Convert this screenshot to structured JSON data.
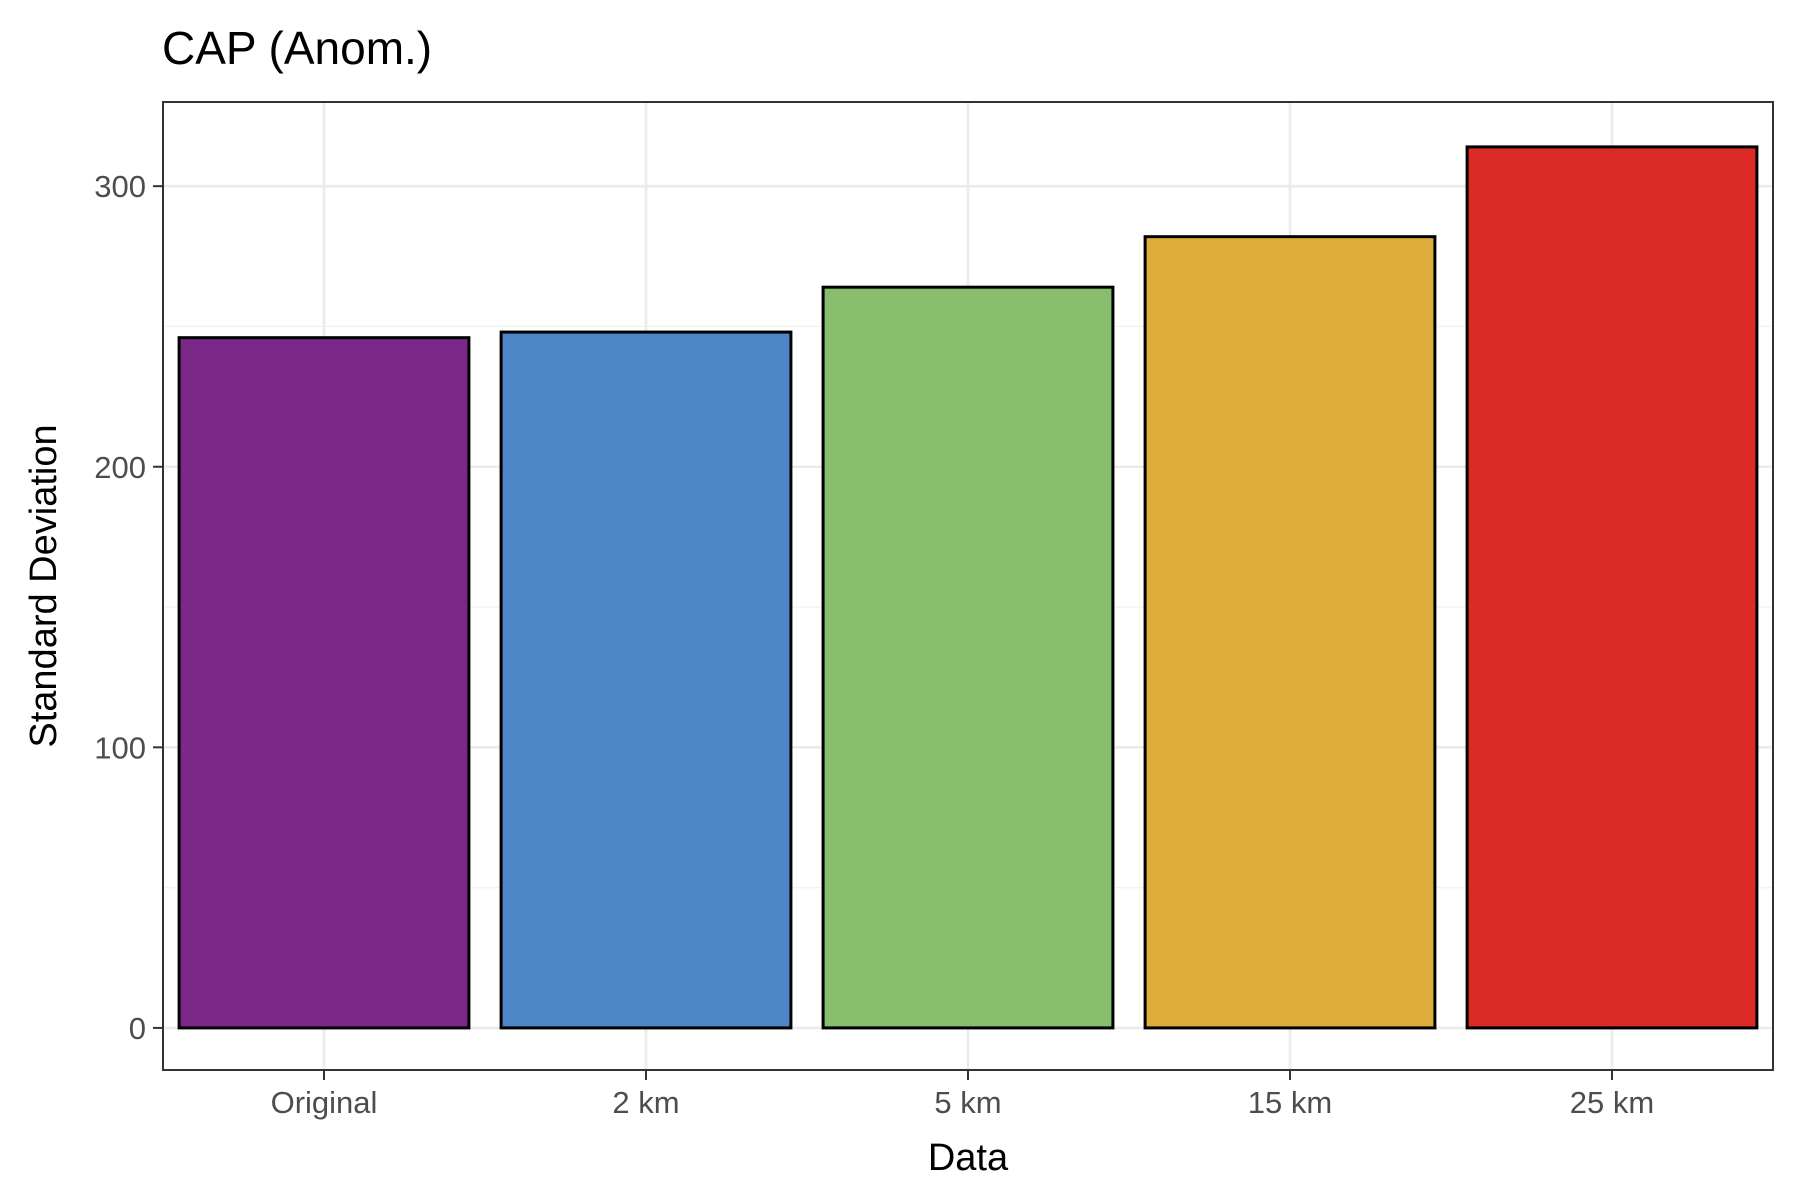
{
  "chart_data": {
    "type": "bar",
    "title": "CAP (Anom.)",
    "xlabel": "Data",
    "ylabel": "Standard Deviation",
    "categories": [
      "Original",
      "2 km",
      "5 km",
      "15 km",
      "25 km"
    ],
    "values": [
      246,
      248,
      264,
      282,
      314
    ],
    "colors": [
      "#7B2988",
      "#4D85C6",
      "#88BD6E",
      "#DDAE3C",
      "#DC2A26"
    ],
    "ylim": [
      -15,
      330
    ],
    "yticks": [
      0,
      100,
      200,
      300
    ],
    "ytick_labels": [
      "0",
      "100",
      "200",
      "300"
    ],
    "grid": true,
    "legend": "none"
  }
}
